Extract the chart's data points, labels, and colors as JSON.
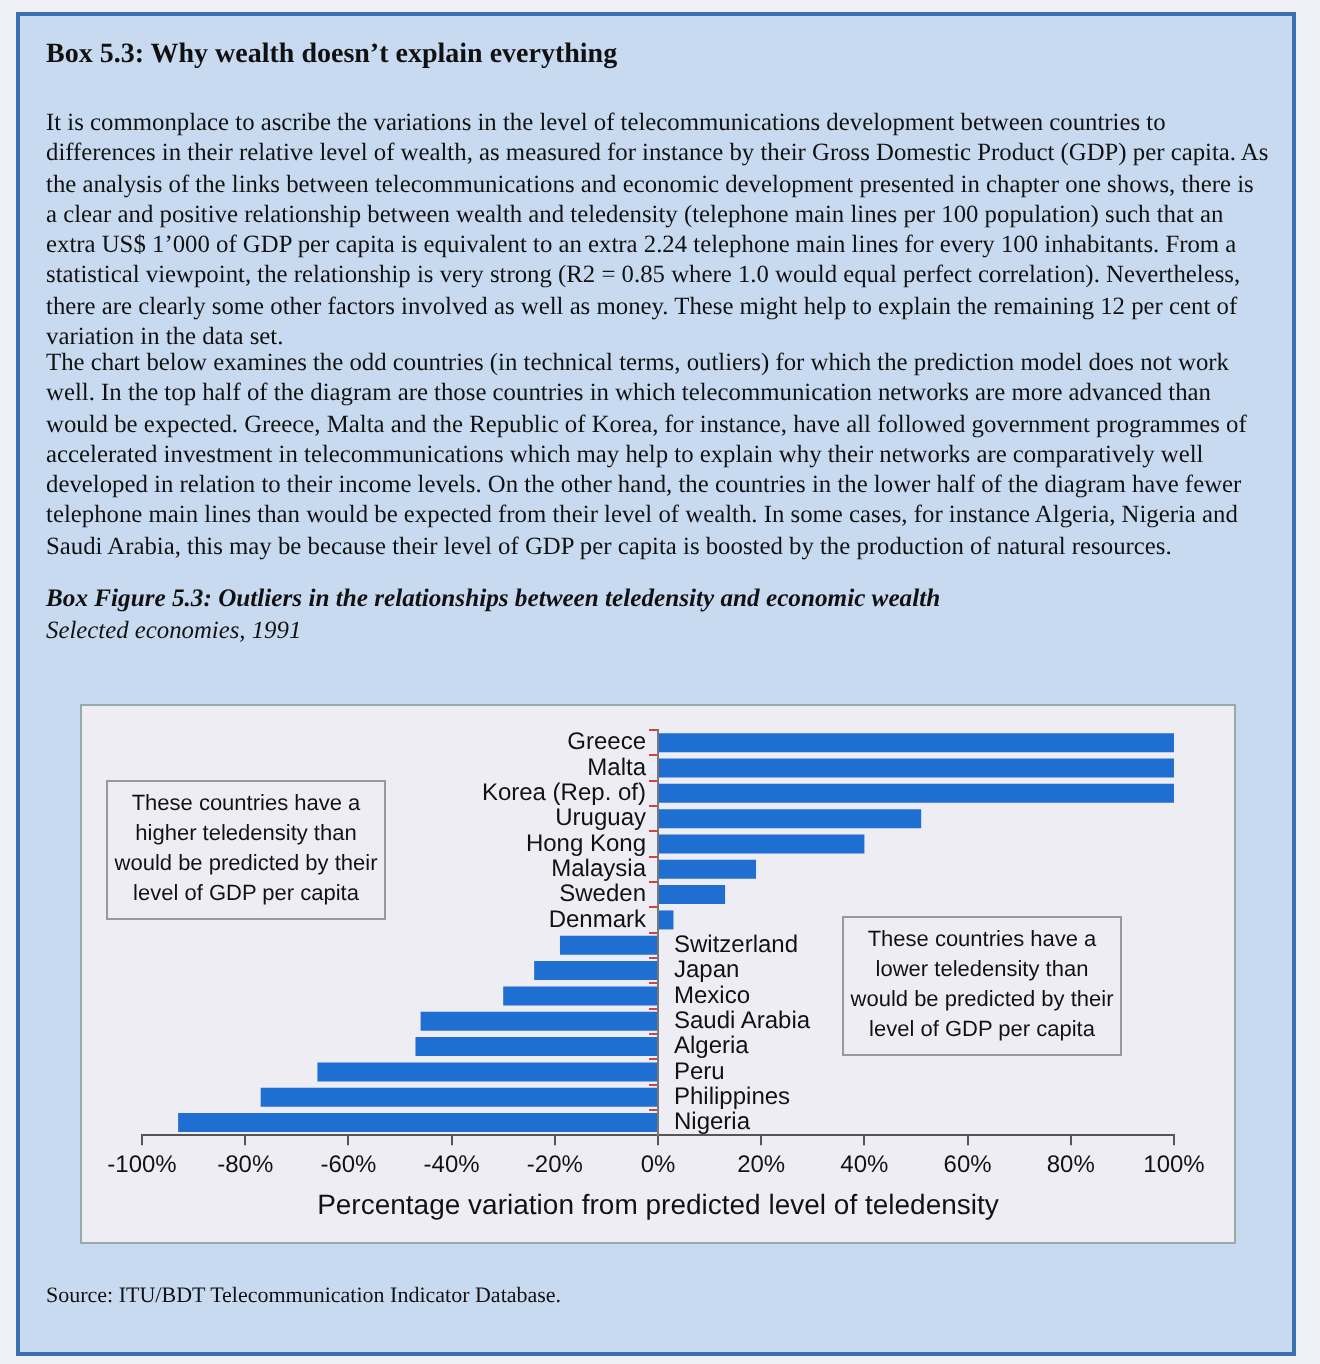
{
  "chart_data": {
    "type": "bar",
    "orientation": "horizontal",
    "title": "Box Figure 5.3:  Outliers in the relationships between teledensity and economic wealth",
    "subtitle": "Selected economies, 1991",
    "xlabel": "Percentage variation from predicted level of teledensity",
    "categories": [
      "Greece",
      "Malta",
      "Korea (Rep. of)",
      "Uruguay",
      "Hong Kong",
      "Malaysia",
      "Sweden",
      "Denmark",
      "Switzerland",
      "Japan",
      "Mexico",
      "Saudi Arabia",
      "Algeria",
      "Peru",
      "Philippines",
      "Nigeria"
    ],
    "values": [
      100,
      100,
      100,
      51,
      40,
      19,
      13,
      3,
      -19,
      -24,
      -30,
      -46,
      -47,
      -66,
      -77,
      -93
    ],
    "color": "#1f6fd2",
    "xlim": [
      -100,
      100
    ],
    "xticks": [
      {
        "value": -100,
        "label": "-100%"
      },
      {
        "value": -80,
        "label": "-80%"
      },
      {
        "value": -60,
        "label": "-60%"
      },
      {
        "value": -40,
        "label": "-40%"
      },
      {
        "value": -20,
        "label": "-20%"
      },
      {
        "value": 0,
        "label": "0%"
      },
      {
        "value": 20,
        "label": "20%"
      },
      {
        "value": 40,
        "label": "40%"
      },
      {
        "value": 60,
        "label": "60%"
      },
      {
        "value": 80,
        "label": "80%"
      },
      {
        "value": 100,
        "label": "100%"
      }
    ],
    "grid": false,
    "legend": false,
    "annotations": [
      "Box 5.3:  Why wealth doesn’t explain everything",
      "It is commonplace to ascribe the variations in the level of telecommunications development between countries to differences in their relative level of wealth, as measured for instance by their Gross Domestic Product (GDP) per capita. As the analysis of the links between telecommunications and economic development presented in chapter one shows, there is a clear and positive relationship between wealth and teledensity (telephone main lines per 100 population) such that an extra US$ 1’000 of GDP per capita is equivalent to an extra 2.24 telephone main lines for every 100 inhabitants. From a statistical viewpoint, the relationship is very strong (R2 = 0.85 where 1.0 would equal perfect correlation). Nevertheless, there are clearly some other factors involved as well as money. These might help to explain the remaining 12 per cent of variation in the data set.",
      "The chart below examines the odd countries (in technical terms, outliers) for which the prediction model does not work well. In the top half of the diagram are those countries in which telecommunication networks are more advanced than would be expected. Greece, Malta and the Republic of Korea, for instance, have all followed government programmes of accelerated investment in telecommunications which may help to explain why their networks are comparatively well developed in relation to their income levels. On the other hand, the countries in the lower half of the diagram have fewer telephone main lines than would be expected from their level of wealth. In some cases, for instance Algeria, Nigeria and Saudi Arabia, this may be because their level of GDP per capita is boosted by the production of natural resources.",
      "These countries have a higher teledensity than would be predicted by their level of GDP per capita",
      "These countries have a lower teledensity than would be predicted by their level of GDP per capita",
      "Source:    ITU/BDT Telecommunication Indicator Database."
    ]
  }
}
